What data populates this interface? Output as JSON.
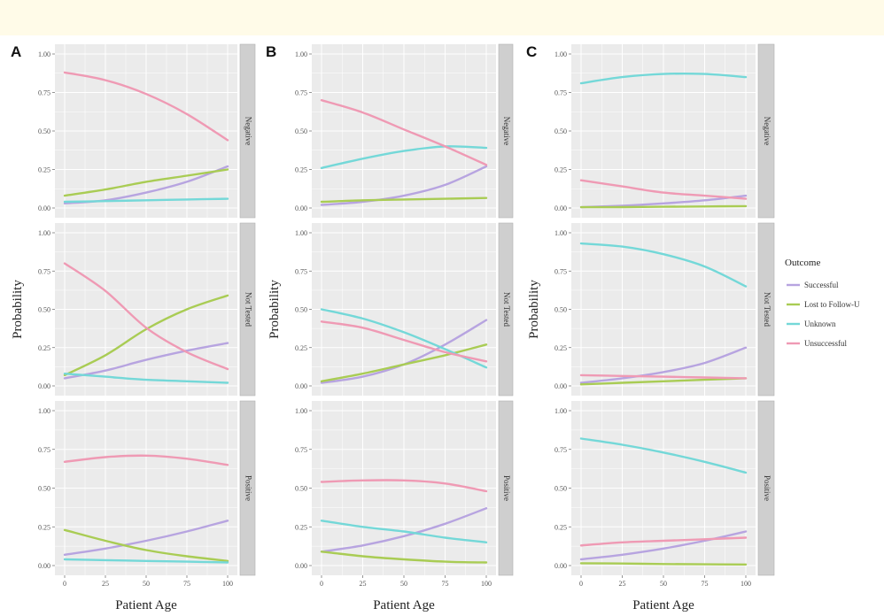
{
  "colors": {
    "Successful": "#b7a4e0",
    "Lost to Follow-Up": "#a9cc54",
    "Unknown": "#74d8d8",
    "Unsuccessful": "#ef9ab4",
    "panel_bg": "#ebebeb",
    "strip_bg": "#cfcfcf",
    "grid": "#ffffff",
    "page_band": "#fffbe8"
  },
  "legend": {
    "title": "Outcome",
    "entries": [
      "Successful",
      "Lost to Follow-U",
      "Unknown",
      "Unsuccessful"
    ]
  },
  "chart_data": {
    "type": "line",
    "xlabel": "Patient Age",
    "ylabel": "Probability",
    "xlim": [
      0,
      100
    ],
    "ylim": [
      0,
      1
    ],
    "x_ticks": [
      "0",
      "25",
      "50",
      "75",
      "100"
    ],
    "y_ticks": [
      "0.00",
      "0.25",
      "0.50",
      "0.75",
      "1.00"
    ],
    "legend_position": "right",
    "grid": true,
    "x": [
      0,
      25,
      50,
      75,
      100
    ],
    "panels": [
      {
        "label": "A",
        "facets": [
          {
            "strip": "Negative",
            "show_ylabel": false,
            "series": [
              {
                "name": "Successful",
                "values": [
                  0.03,
                  0.05,
                  0.1,
                  0.17,
                  0.27
                ]
              },
              {
                "name": "Lost to Follow-Up",
                "values": [
                  0.08,
                  0.12,
                  0.17,
                  0.21,
                  0.25
                ]
              },
              {
                "name": "Unknown",
                "values": [
                  0.04,
                  0.045,
                  0.05,
                  0.055,
                  0.06
                ]
              },
              {
                "name": "Unsuccessful",
                "values": [
                  0.88,
                  0.83,
                  0.74,
                  0.61,
                  0.44
                ]
              }
            ]
          },
          {
            "strip": "Not Tested",
            "show_ylabel": true,
            "series": [
              {
                "name": "Successful",
                "values": [
                  0.05,
                  0.1,
                  0.17,
                  0.23,
                  0.28
                ]
              },
              {
                "name": "Lost to Follow-Up",
                "values": [
                  0.07,
                  0.2,
                  0.37,
                  0.5,
                  0.59
                ]
              },
              {
                "name": "Unknown",
                "values": [
                  0.08,
                  0.06,
                  0.04,
                  0.03,
                  0.02
                ]
              },
              {
                "name": "Unsuccessful",
                "values": [
                  0.8,
                  0.62,
                  0.38,
                  0.22,
                  0.11
                ]
              }
            ]
          },
          {
            "strip": "Positive",
            "show_ylabel": false,
            "series": [
              {
                "name": "Successful",
                "values": [
                  0.07,
                  0.11,
                  0.16,
                  0.22,
                  0.29
                ]
              },
              {
                "name": "Lost to Follow-Up",
                "values": [
                  0.23,
                  0.16,
                  0.1,
                  0.06,
                  0.03
                ]
              },
              {
                "name": "Unknown",
                "values": [
                  0.04,
                  0.035,
                  0.03,
                  0.025,
                  0.02
                ]
              },
              {
                "name": "Unsuccessful",
                "values": [
                  0.67,
                  0.7,
                  0.71,
                  0.69,
                  0.65
                ]
              }
            ]
          }
        ]
      },
      {
        "label": "B",
        "facets": [
          {
            "strip": "Negative",
            "show_ylabel": false,
            "series": [
              {
                "name": "Successful",
                "values": [
                  0.02,
                  0.04,
                  0.08,
                  0.15,
                  0.27
                ]
              },
              {
                "name": "Lost to Follow-Up",
                "values": [
                  0.04,
                  0.05,
                  0.055,
                  0.06,
                  0.065
                ]
              },
              {
                "name": "Unknown",
                "values": [
                  0.26,
                  0.32,
                  0.37,
                  0.4,
                  0.39
                ]
              },
              {
                "name": "Unsuccessful",
                "values": [
                  0.7,
                  0.62,
                  0.51,
                  0.4,
                  0.28
                ]
              }
            ]
          },
          {
            "strip": "Not Tested",
            "show_ylabel": true,
            "series": [
              {
                "name": "Successful",
                "values": [
                  0.02,
                  0.06,
                  0.14,
                  0.27,
                  0.43
                ]
              },
              {
                "name": "Lost to Follow-Up",
                "values": [
                  0.03,
                  0.08,
                  0.14,
                  0.2,
                  0.27
                ]
              },
              {
                "name": "Unknown",
                "values": [
                  0.5,
                  0.44,
                  0.35,
                  0.24,
                  0.12
                ]
              },
              {
                "name": "Unsuccessful",
                "values": [
                  0.42,
                  0.38,
                  0.3,
                  0.22,
                  0.16
                ]
              }
            ]
          },
          {
            "strip": "Positive",
            "show_ylabel": false,
            "series": [
              {
                "name": "Successful",
                "values": [
                  0.09,
                  0.13,
                  0.19,
                  0.27,
                  0.37
                ]
              },
              {
                "name": "Lost to Follow-Up",
                "values": [
                  0.09,
                  0.06,
                  0.04,
                  0.025,
                  0.02
                ]
              },
              {
                "name": "Unknown",
                "values": [
                  0.29,
                  0.25,
                  0.22,
                  0.18,
                  0.15
                ]
              },
              {
                "name": "Unsuccessful",
                "values": [
                  0.54,
                  0.55,
                  0.55,
                  0.53,
                  0.48
                ]
              }
            ]
          }
        ]
      },
      {
        "label": "C",
        "facets": [
          {
            "strip": "Negative",
            "show_ylabel": false,
            "series": [
              {
                "name": "Successful",
                "values": [
                  0.005,
                  0.015,
                  0.03,
                  0.05,
                  0.08
                ]
              },
              {
                "name": "Lost to Follow-Up",
                "values": [
                  0.005,
                  0.006,
                  0.008,
                  0.01,
                  0.012
                ]
              },
              {
                "name": "Unknown",
                "values": [
                  0.81,
                  0.85,
                  0.87,
                  0.87,
                  0.85
                ]
              },
              {
                "name": "Unsuccessful",
                "values": [
                  0.18,
                  0.14,
                  0.1,
                  0.08,
                  0.06
                ]
              }
            ]
          },
          {
            "strip": "Not Tested",
            "show_ylabel": true,
            "series": [
              {
                "name": "Successful",
                "values": [
                  0.02,
                  0.05,
                  0.09,
                  0.15,
                  0.25
                ]
              },
              {
                "name": "Lost to Follow-Up",
                "values": [
                  0.01,
                  0.02,
                  0.03,
                  0.04,
                  0.05
                ]
              },
              {
                "name": "Unknown",
                "values": [
                  0.93,
                  0.91,
                  0.86,
                  0.78,
                  0.65
                ]
              },
              {
                "name": "Unsuccessful",
                "values": [
                  0.07,
                  0.065,
                  0.06,
                  0.055,
                  0.05
                ]
              }
            ]
          },
          {
            "strip": "Positive",
            "show_ylabel": false,
            "series": [
              {
                "name": "Successful",
                "values": [
                  0.04,
                  0.07,
                  0.11,
                  0.16,
                  0.22
                ]
              },
              {
                "name": "Lost to Follow-Up",
                "values": [
                  0.015,
                  0.013,
                  0.01,
                  0.008,
                  0.007
                ]
              },
              {
                "name": "Unknown",
                "values": [
                  0.82,
                  0.78,
                  0.73,
                  0.67,
                  0.6
                ]
              },
              {
                "name": "Unsuccessful",
                "values": [
                  0.13,
                  0.15,
                  0.16,
                  0.17,
                  0.18
                ]
              }
            ]
          }
        ]
      }
    ]
  }
}
